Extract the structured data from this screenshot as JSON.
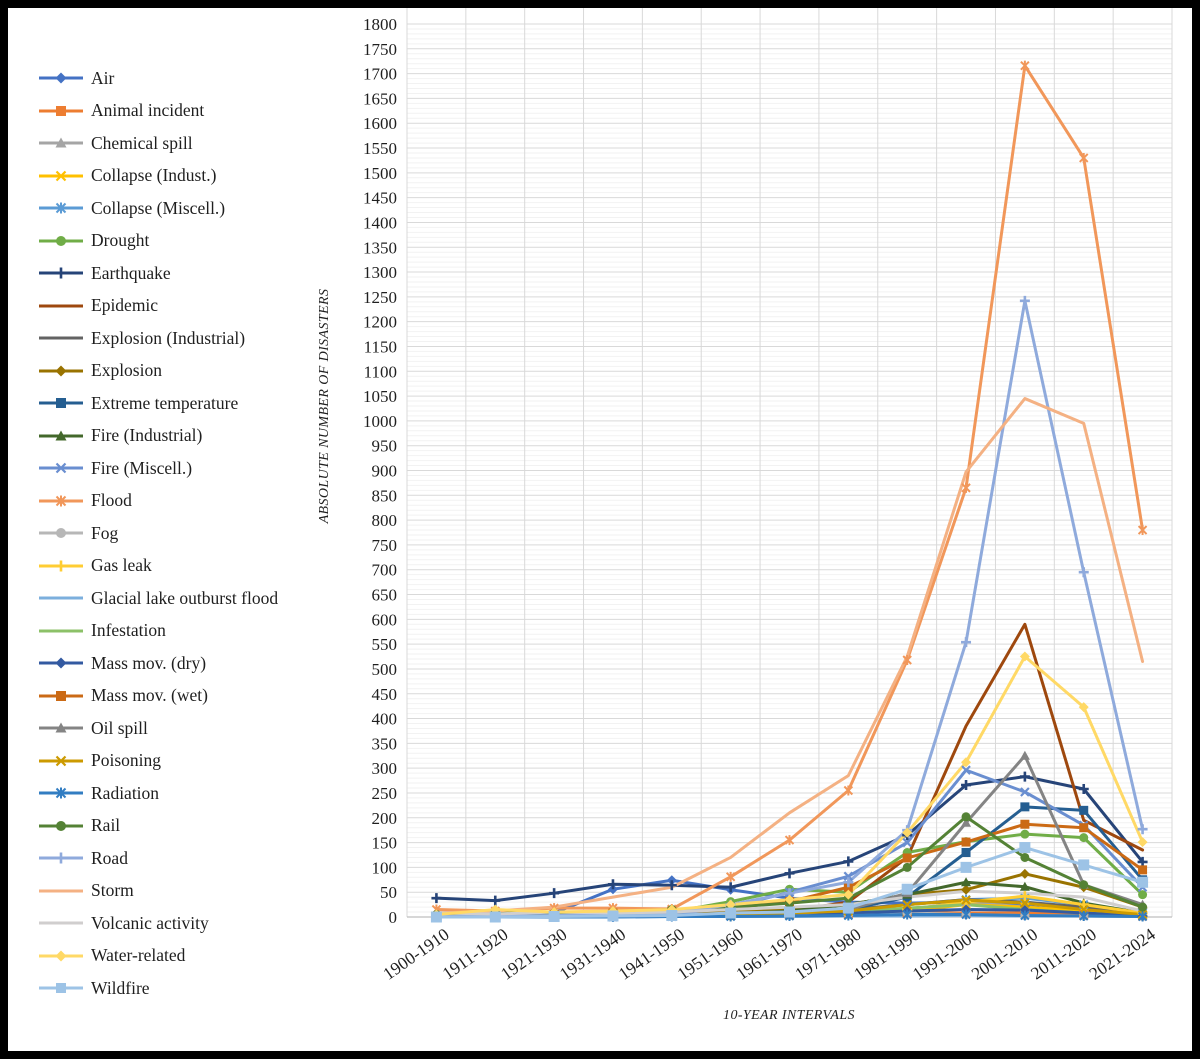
{
  "chart_data": {
    "type": "line",
    "title": "",
    "xlabel": "10-YEAR INTERVALS",
    "ylabel": "ABSOLUTE NUMBER OF DISASTERS",
    "ylim": [
      0,
      1800
    ],
    "ytick_step": 50,
    "ytick_minor_step": 10,
    "grid": true,
    "legend_position": "left",
    "categories": [
      "1900-1910",
      "1911-1920",
      "1921-1930",
      "1931-1940",
      "1941-1950",
      "1951-1960",
      "1961-1970",
      "1971-1980",
      "1981-1990",
      "1991-2000",
      "2001-2010",
      "2011-2020",
      "2021-2024"
    ],
    "series": [
      {
        "name": "Air",
        "color": "#4472C4",
        "marker": "diamond",
        "values": [
          2,
          5,
          8,
          56,
          74,
          55,
          38,
          30,
          28,
          30,
          22,
          10,
          3
        ]
      },
      {
        "name": "Animal incident",
        "color": "#ED7D31",
        "marker": "square",
        "values": [
          1,
          1,
          2,
          2,
          3,
          4,
          5,
          6,
          8,
          8,
          8,
          5,
          2
        ]
      },
      {
        "name": "Chemical spill",
        "color": "#A5A5A5",
        "marker": "triangle",
        "values": [
          0,
          0,
          0,
          1,
          1,
          2,
          5,
          10,
          15,
          30,
          20,
          12,
          5
        ]
      },
      {
        "name": "Collapse (Indust.)",
        "color": "#FFC000",
        "marker": "x",
        "values": [
          0,
          1,
          1,
          2,
          2,
          4,
          6,
          10,
          12,
          25,
          20,
          12,
          4
        ]
      },
      {
        "name": "Collapse (Miscell.)",
        "color": "#5B9BD5",
        "marker": "star",
        "values": [
          2,
          2,
          3,
          4,
          5,
          8,
          12,
          15,
          25,
          35,
          38,
          25,
          8
        ]
      },
      {
        "name": "Drought",
        "color": "#70AD47",
        "marker": "circle",
        "values": [
          2,
          2,
          5,
          8,
          10,
          31,
          56,
          50,
          130,
          152,
          167,
          160,
          45
        ]
      },
      {
        "name": "Earthquake",
        "color": "#264478",
        "marker": "plus",
        "values": [
          38,
          33,
          48,
          66,
          64,
          60,
          88,
          112,
          165,
          266,
          283,
          258,
          111
        ]
      },
      {
        "name": "Epidemic",
        "color": "#9E480E",
        "marker": "none",
        "values": [
          8,
          10,
          6,
          5,
          4,
          6,
          12,
          30,
          120,
          385,
          590,
          195,
          135
        ]
      },
      {
        "name": "Explosion (Industrial)",
        "color": "#636363",
        "marker": "none",
        "values": [
          1,
          2,
          3,
          4,
          5,
          8,
          10,
          15,
          25,
          35,
          30,
          20,
          8
        ]
      },
      {
        "name": "Explosion",
        "color": "#997300",
        "marker": "diamond",
        "values": [
          1,
          2,
          3,
          5,
          8,
          12,
          18,
          25,
          45,
          55,
          87,
          60,
          20
        ]
      },
      {
        "name": "Extreme temperature",
        "color": "#255E91",
        "marker": "square",
        "values": [
          0,
          0,
          1,
          2,
          2,
          5,
          8,
          15,
          40,
          130,
          222,
          215,
          75
        ]
      },
      {
        "name": "Fire (Industrial)",
        "color": "#43682B",
        "marker": "triangle",
        "values": [
          1,
          1,
          2,
          3,
          4,
          6,
          12,
          25,
          45,
          70,
          61,
          28,
          8
        ]
      },
      {
        "name": "Fire (Miscell.)",
        "color": "#698ED0",
        "marker": "x",
        "values": [
          2,
          2,
          3,
          4,
          5,
          20,
          50,
          82,
          150,
          296,
          252,
          185,
          60
        ]
      },
      {
        "name": "Flood",
        "color": "#F1975A",
        "marker": "star",
        "values": [
          15,
          12,
          18,
          18,
          16,
          81,
          155,
          255,
          518,
          865,
          1716,
          1530,
          780
        ]
      },
      {
        "name": "Fog",
        "color": "#B7B7B7",
        "marker": "circle",
        "values": [
          0,
          0,
          1,
          1,
          1,
          2,
          3,
          5,
          8,
          5,
          3,
          2,
          1
        ]
      },
      {
        "name": "Gas leak",
        "color": "#FFCD33",
        "marker": "plus",
        "values": [
          0,
          0,
          1,
          1,
          2,
          3,
          6,
          10,
          15,
          30,
          42,
          25,
          8
        ]
      },
      {
        "name": "Glacial lake outburst flood",
        "color": "#7CAFDD",
        "marker": "none",
        "values": [
          0,
          0,
          0,
          0,
          1,
          1,
          1,
          2,
          2,
          3,
          2,
          2,
          1
        ]
      },
      {
        "name": "Infestation",
        "color": "#8CC168",
        "marker": "none",
        "values": [
          0,
          1,
          1,
          2,
          2,
          3,
          5,
          10,
          18,
          25,
          15,
          8,
          2
        ]
      },
      {
        "name": "Mass mov. (dry)",
        "color": "#335AA1",
        "marker": "diamond",
        "values": [
          0,
          1,
          1,
          1,
          2,
          3,
          5,
          8,
          12,
          15,
          14,
          8,
          2
        ]
      },
      {
        "name": "Mass mov. (wet)",
        "color": "#CB6A15",
        "marker": "square",
        "values": [
          2,
          3,
          5,
          8,
          12,
          18,
          31,
          60,
          119,
          151,
          187,
          180,
          95
        ]
      },
      {
        "name": "Oil spill",
        "color": "#848484",
        "marker": "triangle",
        "values": [
          0,
          0,
          0,
          1,
          1,
          2,
          5,
          15,
          48,
          190,
          325,
          65,
          25
        ]
      },
      {
        "name": "Poisoning",
        "color": "#CC9A00",
        "marker": "x",
        "values": [
          0,
          1,
          1,
          2,
          3,
          5,
          8,
          12,
          25,
          34,
          28,
          15,
          5
        ]
      },
      {
        "name": "Radiation",
        "color": "#327DC2",
        "marker": "star",
        "values": [
          0,
          0,
          0,
          0,
          1,
          1,
          2,
          3,
          5,
          5,
          3,
          2,
          1
        ]
      },
      {
        "name": "Rail",
        "color": "#548235",
        "marker": "circle",
        "values": [
          5,
          8,
          8,
          10,
          15,
          20,
          28,
          38,
          100,
          202,
          120,
          65,
          20
        ]
      },
      {
        "name": "Road",
        "color": "#8FAADC",
        "marker": "plus",
        "values": [
          1,
          2,
          3,
          5,
          8,
          25,
          48,
          70,
          175,
          554,
          1242,
          695,
          177
        ]
      },
      {
        "name": "Storm",
        "color": "#F4B183",
        "marker": "none",
        "values": [
          8,
          12,
          20,
          40,
          60,
          120,
          210,
          285,
          525,
          897,
          1045,
          995,
          515
        ]
      },
      {
        "name": "Volcanic activity",
        "color": "#D0CECE",
        "marker": "none",
        "values": [
          8,
          6,
          10,
          8,
          10,
          15,
          20,
          25,
          40,
          52,
          48,
          40,
          12
        ]
      },
      {
        "name": "Water-related",
        "color": "#FFD966",
        "marker": "diamond",
        "values": [
          5,
          15,
          10,
          12,
          15,
          25,
          35,
          45,
          170,
          312,
          525,
          423,
          151
        ]
      },
      {
        "name": "Wildfire",
        "color": "#9DC3E6",
        "marker": "square",
        "values": [
          0,
          0,
          1,
          2,
          3,
          8,
          10,
          18,
          56,
          100,
          140,
          105,
          70
        ]
      }
    ]
  },
  "colors": {
    "grid_major": "#D9D9D9",
    "grid_minor": "#F2F2F2",
    "axis_line": "#BFBFBF",
    "text": "#1F1F1F",
    "frame_border": "#000000",
    "background": "#FFFFFF"
  }
}
